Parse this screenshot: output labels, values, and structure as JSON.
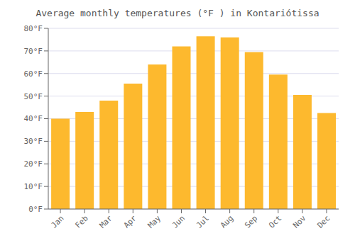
{
  "chart_data": {
    "type": "bar",
    "title": "Average monthly temperatures (°F ) in Kontariótissa",
    "categories": [
      "Jan",
      "Feb",
      "Mar",
      "Apr",
      "May",
      "Jun",
      "Jul",
      "Aug",
      "Sep",
      "Oct",
      "Nov",
      "Dec"
    ],
    "values": [
      40,
      43,
      48,
      55.5,
      64,
      72,
      76.5,
      76,
      69.5,
      59.5,
      50.5,
      42.5
    ],
    "color": "#FDB92E",
    "ylim": [
      0,
      80
    ],
    "yticks": [
      {
        "value": 0,
        "label": "0°F"
      },
      {
        "value": 10,
        "label": "10°F"
      },
      {
        "value": 20,
        "label": "20°F"
      },
      {
        "value": 30,
        "label": "30°F"
      },
      {
        "value": 40,
        "label": "40°F"
      },
      {
        "value": 50,
        "label": "50°F"
      },
      {
        "value": 60,
        "label": "60°F"
      },
      {
        "value": 70,
        "label": "70°F"
      },
      {
        "value": 80,
        "label": "80°F"
      }
    ],
    "grid": true
  }
}
